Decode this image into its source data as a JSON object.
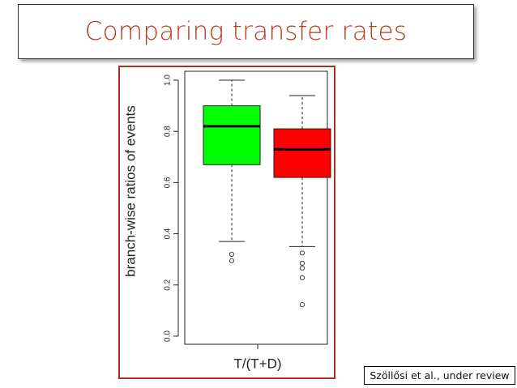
{
  "slide": {
    "title": "Comparing transfer rates",
    "citation": "Szöllősi et al., under review"
  },
  "chart_data": {
    "type": "box",
    "y_label": "branch-wise ratios of events",
    "x_label": "T/(T+D)",
    "ylim": [
      0,
      1
    ],
    "yticks": [
      {
        "value": 0,
        "label": "0.0"
      },
      0.2,
      0.4,
      0.6,
      0.8,
      {
        "value": 1,
        "label": "1.0"
      }
    ],
    "boxes": [
      {
        "color": "#00ff00",
        "whislo": 0.37,
        "q1": 0.67,
        "med": 0.82,
        "q3": 0.9,
        "whishi": 1.0,
        "fliers": [
          0.32,
          0.295
        ]
      },
      {
        "color": "#ff0000",
        "whislo": 0.35,
        "q1": 0.62,
        "med": 0.73,
        "q3": 0.81,
        "whishi": 0.94,
        "fliers": [
          0.325,
          0.285,
          0.266,
          0.228,
          0.123
        ]
      }
    ]
  }
}
